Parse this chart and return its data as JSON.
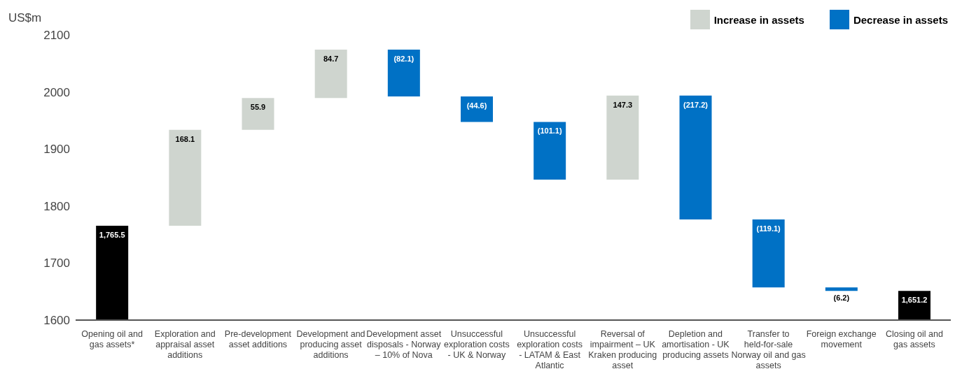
{
  "chart_data": {
    "type": "bar",
    "ylabel": "US$m",
    "categories": [
      "Opening oil and gas assets*",
      "Exploration and appraisal asset additions",
      "Pre-development asset additions",
      "Development and producing asset additions",
      "Development asset disposals - Norway – 10% of Nova",
      "Unsuccessful exploration costs - UK & Norway",
      "Unsuccessful exploration costs - LATAM & East Atlantic",
      "Reversal of impairment – UK Kraken producing asset",
      "Depletion and amortisation - UK producing assets",
      "Transfer to held-for-sale Norway oil and gas assets",
      "Foreign exchange movement",
      "Closing oil and gas assets"
    ],
    "series": [
      {
        "color": "#000000",
        "values": [
          1765.5,
          null,
          null,
          null,
          null,
          null,
          null,
          null,
          null,
          null,
          null,
          1651.2
        ]
      },
      {
        "name": "Increase in assets",
        "color": "#cfd5cf",
        "base": [
          null,
          1765.5,
          1933.6,
          1989.5,
          null,
          null,
          null,
          1846.4,
          null,
          null,
          null,
          null
        ],
        "values": [
          null,
          168.1,
          55.9,
          84.7,
          null,
          null,
          null,
          147.3,
          null,
          null,
          null,
          null
        ]
      },
      {
        "name": "Decrease in assets",
        "color": "#0071c5",
        "base": [
          null,
          null,
          null,
          null,
          2074.2,
          1992.1,
          1947.5,
          null,
          1993.7,
          1776.5,
          1657.4,
          null
        ],
        "values": [
          null,
          null,
          null,
          null,
          -82.1,
          -44.6,
          -101.1,
          null,
          -217.2,
          -119.1,
          -6.2,
          null
        ]
      }
    ],
    "value_labels": [
      "1,765.5",
      "168.1",
      "55.9",
      "84.7",
      "(82.1)",
      "(44.6)",
      "(101.1)",
      "147.3",
      "(217.2)",
      "(119.1)",
      "(6.2)",
      "1,651.2"
    ],
    "ylim": [
      1600,
      2100
    ],
    "yticks": [
      1600,
      1700,
      1800,
      1900,
      2000,
      2100
    ],
    "legend": "top right"
  }
}
